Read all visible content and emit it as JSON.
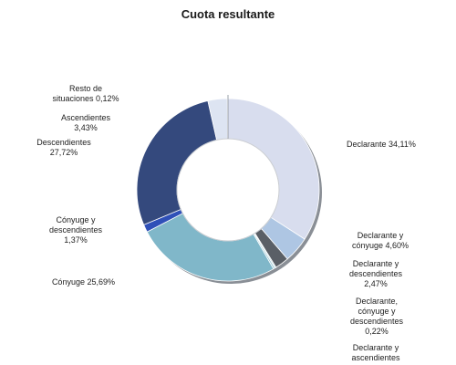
{
  "chart_data": {
    "type": "pie",
    "title": "Cuota resultante",
    "donut": true,
    "slices": [
      {
        "label": "Declarante 34,11%",
        "value": 34.11,
        "color": "#d8ddee"
      },
      {
        "label": "Declarante y cónyuge 4,60%",
        "value": 4.6,
        "color": "#aec6e3"
      },
      {
        "label": "Declarante y descendientes 2,47%",
        "value": 2.47,
        "color": "#5a5f66"
      },
      {
        "label": "Declarante, cónyuge y descendientes 0,22%",
        "value": 0.22,
        "color": "#b8d6dc"
      },
      {
        "label": "Declarante y ascendientes",
        "value": 0.3,
        "color": "#9ec9d6"
      },
      {
        "label": "Cónyuge 25,69%",
        "value": 25.69,
        "color": "#80b7c9"
      },
      {
        "label": "Cónyuge y descendientes 1,37%",
        "value": 1.37,
        "color": "#2f50b8"
      },
      {
        "label": "Descendientes 27,72%",
        "value": 27.72,
        "color": "#34497d"
      },
      {
        "label": "Ascendientes 3,43%",
        "value": 3.43,
        "color": "#dde4f2"
      },
      {
        "label": "Resto de situaciones 0,12%",
        "value": 0.12,
        "color": "#7f8796"
      }
    ],
    "legend": "none"
  },
  "labels": {
    "declarante": "Declarante 34,11%",
    "declarante_conyuge": "Declarante y\ncónyuge 4,60%",
    "declarante_descendientes": "Declarante y\ndescendientes\n2,47%",
    "declarante_conyuge_descendientes": "Declarante,\ncónyuge y\ndescendientes\n0,22%",
    "declarante_ascendientes": "Declarante y\nascendientes",
    "conyuge": "Cónyuge 25,69%",
    "conyuge_descendientes": "Cónyuge y\ndescendientes\n1,37%",
    "descendientes": "Descendientes\n27,72%",
    "ascendientes": "Ascendientes\n3,43%",
    "resto": "Resto de\nsituaciones 0,12%"
  }
}
